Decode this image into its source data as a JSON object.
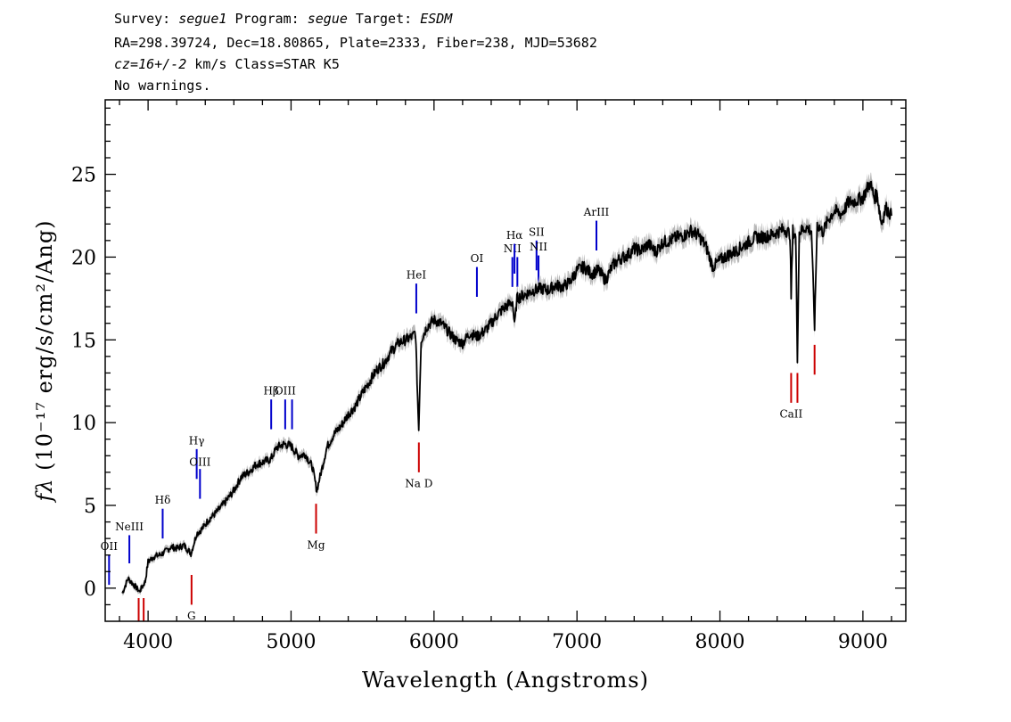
{
  "header": {
    "line1": {
      "survey_label": "Survey: ",
      "survey": "segue1",
      "program_label": " Program: ",
      "program": "segue",
      "target_label": " Target: ",
      "target": "ESDM"
    },
    "line2": "RA=298.39724, Dec=18.80865, Plate=2333, Fiber=238, MJD=53682",
    "line3": {
      "cz": "cz=16+/-2",
      "rest": " km/s Class=STAR K5"
    },
    "line4": "No warnings."
  },
  "chart_data": {
    "type": "line",
    "xlabel": "Wavelength (Angstroms)",
    "ylabel": "fλ (10⁻¹⁷ erg/s/cm²/Ang)",
    "xlim": [
      3700,
      9300
    ],
    "ylim": [
      -2,
      29.5
    ],
    "xticks": [
      4000,
      5000,
      6000,
      7000,
      8000,
      9000
    ],
    "yticks": [
      0,
      5,
      10,
      15,
      20,
      25
    ],
    "grid": false,
    "series": [
      {
        "color": "#000000",
        "error_color": "#b8b8b8",
        "points": [
          [
            3820,
            -0.3
          ],
          [
            3860,
            0.6
          ],
          [
            3900,
            0.2
          ],
          [
            3940,
            -0.2
          ],
          [
            3980,
            0.4
          ],
          [
            4000,
            1.6
          ],
          [
            4040,
            1.9
          ],
          [
            4080,
            2.0
          ],
          [
            4120,
            2.2
          ],
          [
            4160,
            2.5
          ],
          [
            4200,
            2.4
          ],
          [
            4250,
            2.6
          ],
          [
            4300,
            2.1
          ],
          [
            4340,
            3.3
          ],
          [
            4380,
            3.6
          ],
          [
            4420,
            4.1
          ],
          [
            4480,
            4.6
          ],
          [
            4540,
            5.2
          ],
          [
            4600,
            5.9
          ],
          [
            4650,
            6.7
          ],
          [
            4700,
            7.0
          ],
          [
            4760,
            7.5
          ],
          [
            4800,
            7.6
          ],
          [
            4860,
            7.8
          ],
          [
            4900,
            8.5
          ],
          [
            4950,
            8.7
          ],
          [
            5000,
            8.6
          ],
          [
            5050,
            8.0
          ],
          [
            5100,
            8.1
          ],
          [
            5150,
            7.3
          ],
          [
            5180,
            5.9
          ],
          [
            5210,
            7.0
          ],
          [
            5250,
            8.5
          ],
          [
            5300,
            9.3
          ],
          [
            5350,
            9.8
          ],
          [
            5400,
            10.5
          ],
          [
            5450,
            11.0
          ],
          [
            5500,
            11.8
          ],
          [
            5550,
            12.5
          ],
          [
            5600,
            13.2
          ],
          [
            5650,
            13.6
          ],
          [
            5700,
            14.3
          ],
          [
            5750,
            14.8
          ],
          [
            5800,
            15.0
          ],
          [
            5850,
            15.2
          ],
          [
            5870,
            15.5
          ],
          [
            5893,
            9.6
          ],
          [
            5910,
            15.0
          ],
          [
            5950,
            15.8
          ],
          [
            6000,
            16.2
          ],
          [
            6050,
            16.0
          ],
          [
            6100,
            15.5
          ],
          [
            6150,
            15.0
          ],
          [
            6200,
            14.8
          ],
          [
            6250,
            15.4
          ],
          [
            6300,
            15.2
          ],
          [
            6350,
            15.5
          ],
          [
            6400,
            16.0
          ],
          [
            6450,
            16.6
          ],
          [
            6500,
            17.0
          ],
          [
            6550,
            17.3
          ],
          [
            6563,
            15.8
          ],
          [
            6580,
            17.5
          ],
          [
            6650,
            17.8
          ],
          [
            6700,
            18.0
          ],
          [
            6750,
            18.1
          ],
          [
            6800,
            18.0
          ],
          [
            6850,
            18.3
          ],
          [
            6900,
            18.2
          ],
          [
            6950,
            18.5
          ],
          [
            7000,
            19.2
          ],
          [
            7050,
            19.4
          ],
          [
            7100,
            19.0
          ],
          [
            7150,
            19.2
          ],
          [
            7200,
            18.6
          ],
          [
            7250,
            19.5
          ],
          [
            7300,
            19.9
          ],
          [
            7350,
            20.1
          ],
          [
            7400,
            20.5
          ],
          [
            7450,
            20.4
          ],
          [
            7500,
            20.8
          ],
          [
            7550,
            20.3
          ],
          [
            7600,
            20.9
          ],
          [
            7650,
            21.0
          ],
          [
            7700,
            21.2
          ],
          [
            7750,
            21.3
          ],
          [
            7800,
            21.6
          ],
          [
            7850,
            21.3
          ],
          [
            7900,
            20.7
          ],
          [
            7950,
            19.4
          ],
          [
            8000,
            19.8
          ],
          [
            8050,
            20.1
          ],
          [
            8100,
            20.3
          ],
          [
            8150,
            20.6
          ],
          [
            8200,
            20.9
          ],
          [
            8250,
            21.2
          ],
          [
            8300,
            21.2
          ],
          [
            8350,
            21.3
          ],
          [
            8400,
            21.5
          ],
          [
            8450,
            21.7
          ],
          [
            8490,
            21.4
          ],
          [
            8498,
            17.6
          ],
          [
            8510,
            21.6
          ],
          [
            8530,
            21.2
          ],
          [
            8542,
            13.9
          ],
          [
            8555,
            21.5
          ],
          [
            8600,
            21.8
          ],
          [
            8640,
            21.6
          ],
          [
            8662,
            15.8
          ],
          [
            8680,
            22.0
          ],
          [
            8720,
            21.5
          ],
          [
            8760,
            22.3
          ],
          [
            8800,
            22.8
          ],
          [
            8850,
            22.6
          ],
          [
            8900,
            23.3
          ],
          [
            8950,
            23.4
          ],
          [
            9000,
            23.6
          ],
          [
            9050,
            24.5
          ],
          [
            9080,
            23.6
          ],
          [
            9100,
            23.8
          ],
          [
            9130,
            22.0
          ],
          [
            9160,
            23.0
          ],
          [
            9200,
            22.5
          ]
        ]
      }
    ],
    "emission_lines": [
      {
        "label": "OII",
        "x": 3727,
        "y1": 0.2,
        "y2": 2.0,
        "labelY": 2.3,
        "color": "#0000cc"
      },
      {
        "label": "NeIII",
        "x": 3869,
        "y1": 1.5,
        "y2": 3.2,
        "labelY": 3.5,
        "color": "#0000cc"
      },
      {
        "label": "Hδ",
        "x": 4102,
        "y1": 3.0,
        "y2": 4.8,
        "labelY": 5.1,
        "color": "#0000cc"
      },
      {
        "label": "Hγ",
        "x": 4340,
        "y1": 6.6,
        "y2": 8.4,
        "labelY": 8.7,
        "color": "#0000cc"
      },
      {
        "label": "OIII",
        "x": 4363,
        "y1": 5.4,
        "y2": 7.2,
        "labelY": 7.4,
        "color": "#0000cc"
      },
      {
        "label": "Hβ",
        "x": 4861,
        "y1": 9.6,
        "y2": 11.4,
        "labelY": 11.7,
        "color": "#0000cc"
      },
      {
        "label": "OIII",
        "x": 4959,
        "y1": 9.6,
        "y2": 11.4,
        "labelY": 11.7,
        "color": "#0000cc"
      },
      {
        "label": "",
        "x": 5007,
        "y1": 9.6,
        "y2": 11.4,
        "labelY": 11.7,
        "color": "#0000cc"
      },
      {
        "label": "HeI",
        "x": 5876,
        "y1": 16.6,
        "y2": 18.4,
        "labelY": 18.7,
        "color": "#0000cc"
      },
      {
        "label": "OI",
        "x": 6300,
        "y1": 17.6,
        "y2": 19.4,
        "labelY": 19.7,
        "color": "#0000cc"
      },
      {
        "label": "NII",
        "x": 6548,
        "y1": 18.2,
        "y2": 20.0,
        "labelY": 20.3,
        "color": "#0000cc"
      },
      {
        "label": "Hα",
        "x": 6563,
        "y1": 19.0,
        "y2": 20.8,
        "labelY": 21.1,
        "color": "#0000cc"
      },
      {
        "label": "",
        "x": 6583,
        "y1": 18.2,
        "y2": 20.0,
        "labelY": 20.3,
        "color": "#0000cc"
      },
      {
        "label": "SII",
        "x": 6717,
        "y1": 19.2,
        "y2": 21.0,
        "labelY": 21.3,
        "color": "#0000cc"
      },
      {
        "label": "NII",
        "x": 6731,
        "y1": 18.3,
        "y2": 20.1,
        "labelY": 20.4,
        "color": "#0000cc"
      },
      {
        "label": "ArIII",
        "x": 7136,
        "y1": 20.4,
        "y2": 22.2,
        "labelY": 22.5,
        "color": "#0000cc"
      }
    ],
    "absorption_lines": [
      {
        "label": "",
        "x": 3934,
        "y1": -2.0,
        "y2": -0.6,
        "labelY": null,
        "color": "#cc0000"
      },
      {
        "label": "",
        "x": 3969,
        "y1": -2.0,
        "y2": -0.6,
        "labelY": null,
        "color": "#cc0000"
      },
      {
        "label": "G",
        "x": 4304,
        "y1": -1.0,
        "y2": 0.8,
        "labelY": -1.9,
        "color": "#cc0000"
      },
      {
        "label": "Mg",
        "x": 5175,
        "y1": 3.3,
        "y2": 5.1,
        "labelY": 2.4,
        "color": "#cc0000"
      },
      {
        "label": "Na D",
        "x": 5894,
        "y1": 7.0,
        "y2": 8.8,
        "labelY": 6.1,
        "color": "#cc0000"
      },
      {
        "label": "CaII",
        "x": 8498,
        "y1": 11.2,
        "y2": 13.0,
        "labelY": 10.3,
        "color": "#cc0000"
      },
      {
        "label": "",
        "x": 8542,
        "y1": 11.2,
        "y2": 13.0,
        "labelY": null,
        "color": "#cc0000"
      },
      {
        "label": "",
        "x": 8662,
        "y1": 12.9,
        "y2": 14.7,
        "labelY": null,
        "color": "#cc0000"
      }
    ]
  }
}
